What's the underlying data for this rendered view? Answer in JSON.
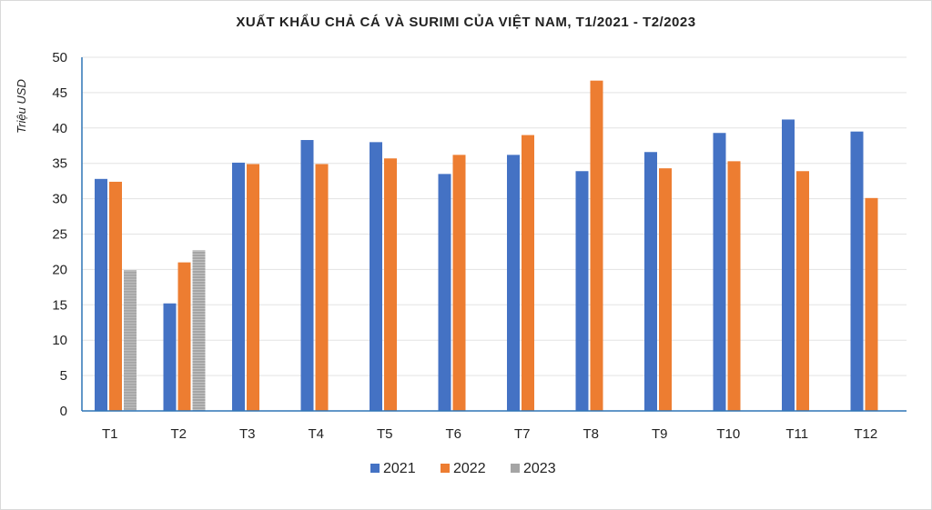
{
  "chart_data": {
    "type": "bar",
    "title": "XUẤT KHẨU CHẢ CÁ VÀ SURIMI CỦA VIỆT NAM, T1/2021 - T2/2023",
    "ylabel": "Triệu USD",
    "xlabel": "",
    "ylim": [
      0,
      50
    ],
    "yticks": [
      0,
      5,
      10,
      15,
      20,
      25,
      30,
      35,
      40,
      45,
      50
    ],
    "grid": true,
    "legend_position": "bottom",
    "categories": [
      "T1",
      "T2",
      "T3",
      "T4",
      "T5",
      "T6",
      "T7",
      "T8",
      "T9",
      "T10",
      "T11",
      "T12"
    ],
    "series": [
      {
        "name": "2021",
        "color": "#4472c4",
        "values": [
          32.8,
          15.2,
          35.1,
          38.3,
          38.0,
          33.5,
          36.2,
          33.9,
          36.6,
          39.3,
          41.2,
          39.5
        ]
      },
      {
        "name": "2022",
        "color": "#ed7d31",
        "values": [
          32.4,
          21.0,
          34.9,
          34.9,
          35.7,
          36.2,
          39.0,
          46.7,
          34.3,
          35.3,
          33.9,
          30.1
        ]
      },
      {
        "name": "2023",
        "color": "#a5a5a5",
        "values": [
          19.9,
          22.7,
          null,
          null,
          null,
          null,
          null,
          null,
          null,
          null,
          null,
          null
        ]
      }
    ]
  }
}
